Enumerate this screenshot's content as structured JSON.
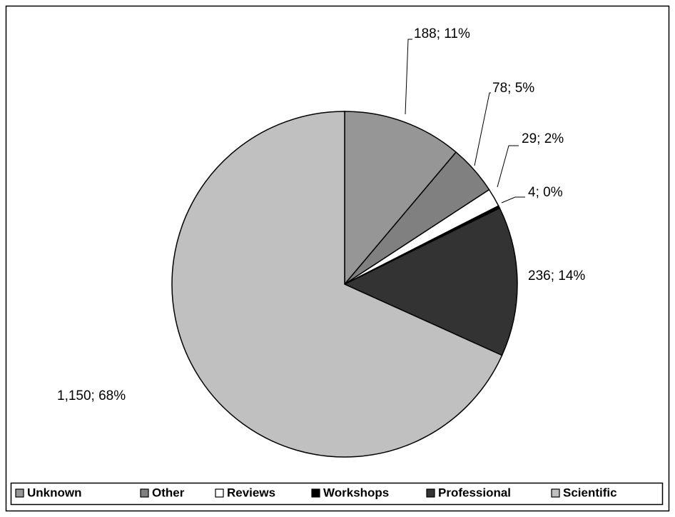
{
  "chart_data": {
    "type": "pie",
    "categories": [
      "Unknown",
      "Other",
      "Reviews",
      "Workshops",
      "Professional",
      "Scientific"
    ],
    "values": [
      188,
      78,
      29,
      4,
      236,
      1150
    ],
    "value_labels": [
      "188; 11%",
      "78; 5%",
      "29; 2%",
      "4; 0%",
      "236; 14%",
      "1,150; 68%"
    ],
    "colors": [
      "#969696",
      "#808080",
      "#ffffff",
      "#000000",
      "#333333",
      "#c0c0c0"
    ],
    "legend": "bottom"
  }
}
